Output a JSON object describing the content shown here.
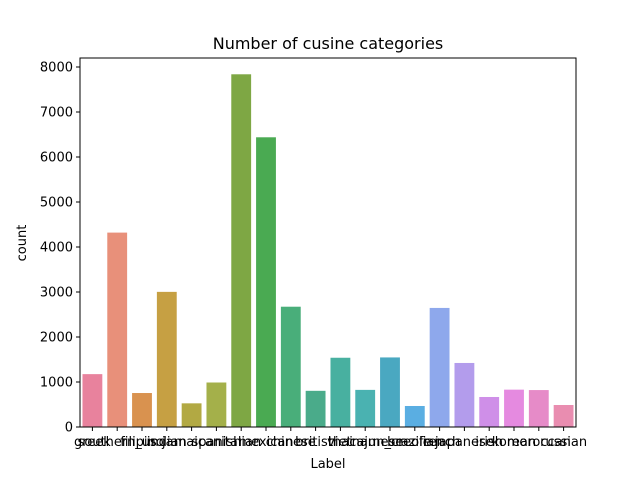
{
  "chart_data": {
    "type": "bar",
    "title": "Number of cusine categories",
    "xlabel": "Label",
    "ylabel": "count",
    "ylim": [
      0,
      8200
    ],
    "yticks": [
      0,
      1000,
      2000,
      3000,
      4000,
      5000,
      6000,
      7000,
      8000
    ],
    "grid": false,
    "categories": [
      "greek",
      "southern_us",
      "filipino",
      "indian",
      "jamaican",
      "spanish",
      "italian",
      "mexican",
      "chinese",
      "british",
      "thai",
      "vietnamese",
      "cajun_creole",
      "brazilian",
      "french",
      "japanese",
      "irish",
      "korean",
      "moroccan",
      "russian"
    ],
    "values": [
      1175,
      4320,
      755,
      3003,
      526,
      989,
      7838,
      6438,
      2673,
      804,
      1539,
      825,
      1546,
      467,
      2646,
      1423,
      667,
      830,
      821,
      489
    ],
    "colors": [
      "#e8829d",
      "#e8907a",
      "#d9924f",
      "#c6a043",
      "#b2a943",
      "#a4b04a",
      "#7ea744",
      "#4aaa52",
      "#49ae7a",
      "#4aab8a",
      "#48b0a0",
      "#4ab2b1",
      "#4aa8c1",
      "#5aaee2",
      "#8ea8ec",
      "#b39cec",
      "#cf8fe8",
      "#e58ae0",
      "#e68bc8",
      "#e98db0"
    ]
  }
}
